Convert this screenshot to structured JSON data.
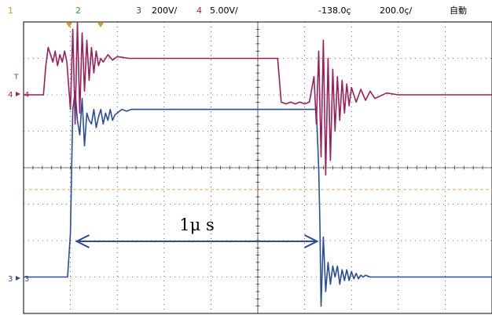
{
  "header": {
    "ch1": "1",
    "ch2": "2",
    "ch3": "3",
    "ch3_scale": "200V/",
    "ch4": "4",
    "ch4_scale": "5.00V/",
    "time_offset": "-138.0ç",
    "time_scale": "200.0ç/",
    "mode": "自動"
  },
  "colors": {
    "ch1": "#d4a017",
    "ch2": "#2e9e2e",
    "ch3": "#2a4d9b",
    "ch4": "#9b1f5a",
    "grid": "#000000",
    "trigger_level": "#f0a050"
  },
  "markers": {
    "ch3_label": "3",
    "ch4_label": "4",
    "trigger_label": "T"
  },
  "chart_data": {
    "type": "line",
    "title": "",
    "xlabel": "",
    "ylabel": "",
    "x_unit": "ns",
    "grid": true,
    "time_per_div_ns": 200,
    "xlim": [
      -1000,
      1000
    ],
    "ylim_div": [
      -4,
      4
    ],
    "annotation": {
      "text": "1μ s",
      "from_ns": -780,
      "to_ns": 260
    },
    "trigger_level_div": -0.6,
    "series": [
      {
        "channel": "3",
        "scale": "200V/",
        "x": [
          -1000,
          -830,
          -812,
          -800,
          -790,
          -780,
          -770,
          -760,
          -750,
          -740,
          -730,
          -720,
          -710,
          -700,
          -690,
          -680,
          -670,
          -660,
          -650,
          -640,
          -630,
          -620,
          -610,
          -600,
          -590,
          -580,
          -560,
          -540,
          -500,
          -400,
          -300,
          -200,
          -100,
          0,
          100,
          200,
          230,
          250,
          260,
          265,
          270,
          275,
          280,
          290,
          300,
          310,
          320,
          330,
          340,
          350,
          360,
          370,
          380,
          390,
          400,
          410,
          420,
          430,
          440,
          450,
          460,
          480,
          500,
          550,
          600,
          700,
          800,
          900,
          1000
        ],
        "y": [
          -3.0,
          -3.0,
          -3.0,
          -1.8,
          1.6,
          2.1,
          1.3,
          0.9,
          1.9,
          0.6,
          1.5,
          1.3,
          1.2,
          1.6,
          1.1,
          1.4,
          1.6,
          1.2,
          1.5,
          1.3,
          1.6,
          1.3,
          1.45,
          1.5,
          1.55,
          1.6,
          1.55,
          1.6,
          1.6,
          1.6,
          1.6,
          1.6,
          1.6,
          1.6,
          1.6,
          1.6,
          1.6,
          1.6,
          0.0,
          -1.5,
          -3.8,
          -2.9,
          -1.9,
          -3.4,
          -2.6,
          -3.2,
          -2.7,
          -3.0,
          -2.7,
          -3.2,
          -2.8,
          -3.1,
          -2.8,
          -3.1,
          -2.85,
          -3.05,
          -2.9,
          -3.05,
          -2.95,
          -3.0,
          -2.95,
          -3.0,
          -3.0,
          -3.0,
          -3.0,
          -3.0,
          -3.0,
          -3.0,
          -3.0
        ]
      },
      {
        "channel": "4",
        "scale": "5.00V/",
        "x": [
          -1000,
          -950,
          -915,
          -905,
          -895,
          -885,
          -875,
          -865,
          -855,
          -845,
          -835,
          -825,
          -815,
          -800,
          -790,
          -780,
          -770,
          -760,
          -750,
          -740,
          -730,
          -720,
          -710,
          -700,
          -690,
          -680,
          -670,
          -660,
          -640,
          -620,
          -600,
          -550,
          -500,
          -400,
          -300,
          -200,
          -100,
          0,
          60,
          85,
          100,
          120,
          140,
          160,
          180,
          200,
          220,
          240,
          250,
          260,
          270,
          280,
          290,
          300,
          310,
          320,
          330,
          340,
          350,
          360,
          370,
          380,
          390,
          400,
          420,
          440,
          460,
          480,
          500,
          550,
          600,
          700,
          800,
          900,
          1000
        ],
        "y": [
          2.0,
          2.0,
          2.0,
          2.8,
          3.3,
          3.1,
          2.9,
          3.2,
          2.8,
          3.1,
          2.9,
          3.2,
          2.9,
          1.6,
          3.8,
          1.2,
          4.0,
          1.5,
          3.7,
          2.1,
          3.5,
          2.4,
          3.3,
          2.6,
          3.2,
          2.8,
          3.0,
          2.9,
          3.1,
          2.95,
          3.05,
          3.0,
          3.0,
          3.0,
          3.0,
          3.0,
          3.0,
          3.0,
          3.0,
          3.0,
          1.8,
          1.75,
          1.8,
          1.75,
          1.8,
          1.75,
          1.8,
          2.5,
          1.2,
          3.2,
          0.3,
          3.5,
          -0.2,
          3.0,
          0.2,
          2.7,
          1.0,
          2.5,
          1.3,
          2.4,
          1.5,
          2.3,
          1.7,
          2.2,
          1.8,
          2.15,
          1.85,
          2.1,
          1.9,
          2.05,
          2.0,
          2.0,
          2.0,
          2.0,
          2.0
        ]
      }
    ]
  }
}
